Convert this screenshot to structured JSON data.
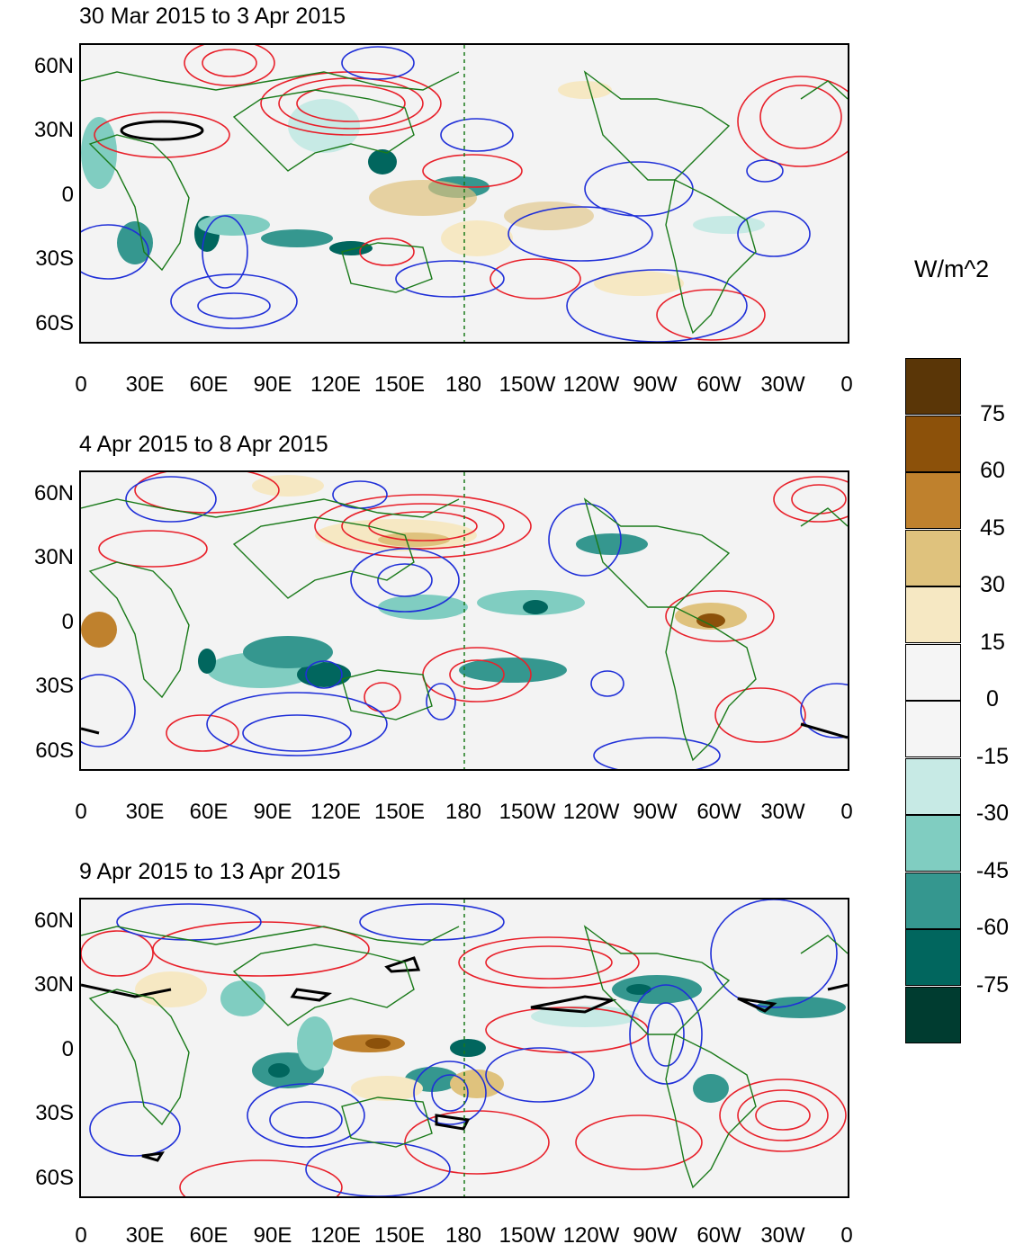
{
  "units_label": "W/m^2",
  "panels": [
    {
      "title": "30 Mar 2015 to 3 Apr 2015"
    },
    {
      "title": "4 Apr 2015 to 8 Apr 2015"
    },
    {
      "title": "9 Apr 2015 to 13 Apr 2015"
    }
  ],
  "lat_labels": [
    "60N",
    "30N",
    "0",
    "30S",
    "60S"
  ],
  "lon_labels": [
    "0",
    "30E",
    "60E",
    "90E",
    "120E",
    "150E",
    "180",
    "150W",
    "120W",
    "90W",
    "60W",
    "30W",
    "0"
  ],
  "colorbar": {
    "labels": [
      "75",
      "60",
      "45",
      "30",
      "15",
      "0",
      "-15",
      "-30",
      "-45",
      "-60",
      "-75"
    ],
    "colors": [
      "#5a3607",
      "#8c510a",
      "#bf812d",
      "#dfc27d",
      "#f6e8c3",
      "#f5f5f5",
      "#f5f5f5",
      "#c7eae5",
      "#80cdc1",
      "#35978f",
      "#01665e",
      "#003c30"
    ]
  },
  "colors": {
    "positive_contour": "#e8202a",
    "negative_contour": "#1f2fd8",
    "zero_contour": "#000000",
    "coastline": "#1a7a1a",
    "dateline": "#1a7a1a",
    "background": "#f3f3f3"
  }
}
